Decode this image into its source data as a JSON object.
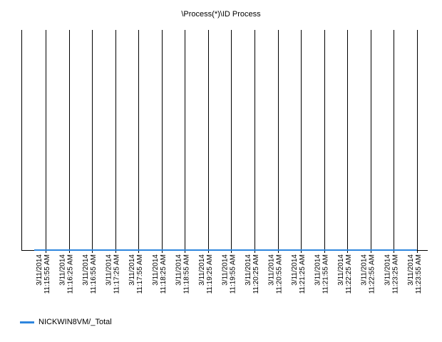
{
  "chart_data": {
    "type": "line",
    "title": "\\Process(*)\\ID Process",
    "xlabel": "",
    "ylabel": "",
    "categories": [
      "3/11/2014 11:15:55 AM",
      "3/11/2014 11:16:25 AM",
      "3/11/2014 11:16:55 AM",
      "3/11/2014 11:17:25 AM",
      "3/11/2014 11:17:55 AM",
      "3/11/2014 11:18:25 AM",
      "3/11/2014 11:18:55 AM",
      "3/11/2014 11:19:25 AM",
      "3/11/2014 11:19:55 AM",
      "3/11/2014 11:20:25 AM",
      "3/11/2014 11:20:55 AM",
      "3/11/2014 11:21:25 AM",
      "3/11/2014 11:21:55 AM",
      "3/11/2014 11:22:25 AM",
      "3/11/2014 11:22:55 AM",
      "3/11/2014 11:23:25 AM",
      "3/11/2014 11:23:55 AM"
    ],
    "series": [
      {
        "name": "NICKWIN8VM/_Total",
        "color": "#2e86de",
        "values": [
          0,
          0,
          0,
          0,
          0,
          0,
          0,
          0,
          0,
          0,
          0,
          0,
          0,
          0,
          0,
          0,
          0
        ]
      }
    ],
    "ylim": [
      0,
      1
    ],
    "grid": "vertical",
    "legend_position": "bottom-left"
  }
}
